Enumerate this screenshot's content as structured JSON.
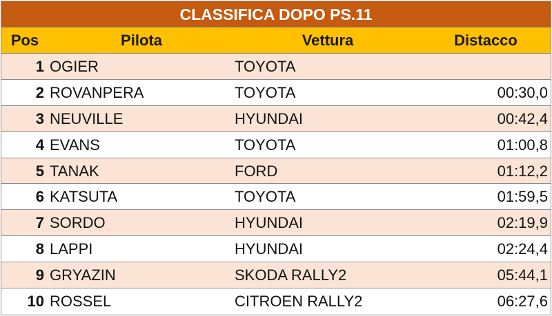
{
  "title": "CLASSIFICA DOPO PS.11",
  "columns": {
    "pos": "Pos",
    "pilota": "Pilota",
    "vettura": "Vettura",
    "distacco": "Distacco"
  },
  "rows": [
    {
      "pos": "1",
      "pilota": "OGIER",
      "vettura": "TOYOTA",
      "distacco": ""
    },
    {
      "pos": "2",
      "pilota": "ROVANPERA",
      "vettura": "TOYOTA",
      "distacco": "00:30,0"
    },
    {
      "pos": "3",
      "pilota": "NEUVILLE",
      "vettura": "HYUNDAI",
      "distacco": "00:42,4"
    },
    {
      "pos": "4",
      "pilota": "EVANS",
      "vettura": "TOYOTA",
      "distacco": "01:00,8"
    },
    {
      "pos": "5",
      "pilota": "TANAK",
      "vettura": "FORD",
      "distacco": "01:12,2"
    },
    {
      "pos": "6",
      "pilota": "KATSUTA",
      "vettura": "TOYOTA",
      "distacco": "01:59,5"
    },
    {
      "pos": "7",
      "pilota": "SORDO",
      "vettura": "HYUNDAI",
      "distacco": "02:19,9"
    },
    {
      "pos": "8",
      "pilota": "LAPPI",
      "vettura": "HYUNDAI",
      "distacco": "02:24,4"
    },
    {
      "pos": "9",
      "pilota": "GRYAZIN",
      "vettura": "SKODA RALLY2",
      "distacco": "05:44,1"
    },
    {
      "pos": "10",
      "pilota": "ROSSEL",
      "vettura": "CITROEN RALLY2",
      "distacco": "06:27,6"
    }
  ],
  "colors": {
    "title_bg": "#c55a11",
    "header_bg": "#ffc000",
    "row_alt_bg": "#fbe4d5"
  }
}
